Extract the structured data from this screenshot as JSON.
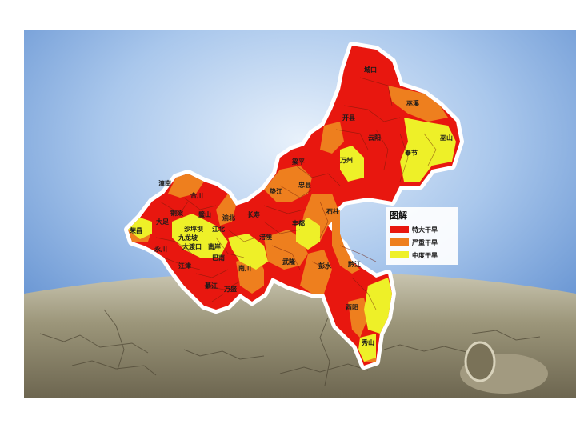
{
  "map": {
    "colors": {
      "extreme": "#e8170f",
      "severe": "#ee7f1e",
      "moderate": "#eef028",
      "border": "#ffffff",
      "sky": "#5b8fd4",
      "ground": "#8a8468"
    },
    "legend": {
      "title": "图解",
      "items": [
        {
          "label": "特大干旱",
          "color": "#e8170f"
        },
        {
          "label": "严重干旱",
          "color": "#ee7f1e"
        },
        {
          "label": "中度干旱",
          "color": "#eef028"
        }
      ]
    },
    "labels": [
      "城口",
      "巫溪",
      "奉节",
      "巫山",
      "开县",
      "云阳",
      "万州",
      "梁平",
      "忠县",
      "垫江",
      "长寿",
      "丰都",
      "石柱",
      "涪陵",
      "武隆",
      "彭水",
      "黔江",
      "酉阳",
      "秀山",
      "潼南",
      "合川",
      "大足",
      "铜梁",
      "璧山",
      "荣昌",
      "永川",
      "江津",
      "綦江",
      "万盛",
      "南川",
      "巴南",
      "渝北",
      "沙坪坝",
      "九龙坡",
      "江北",
      "大渡口",
      "南岸"
    ]
  }
}
